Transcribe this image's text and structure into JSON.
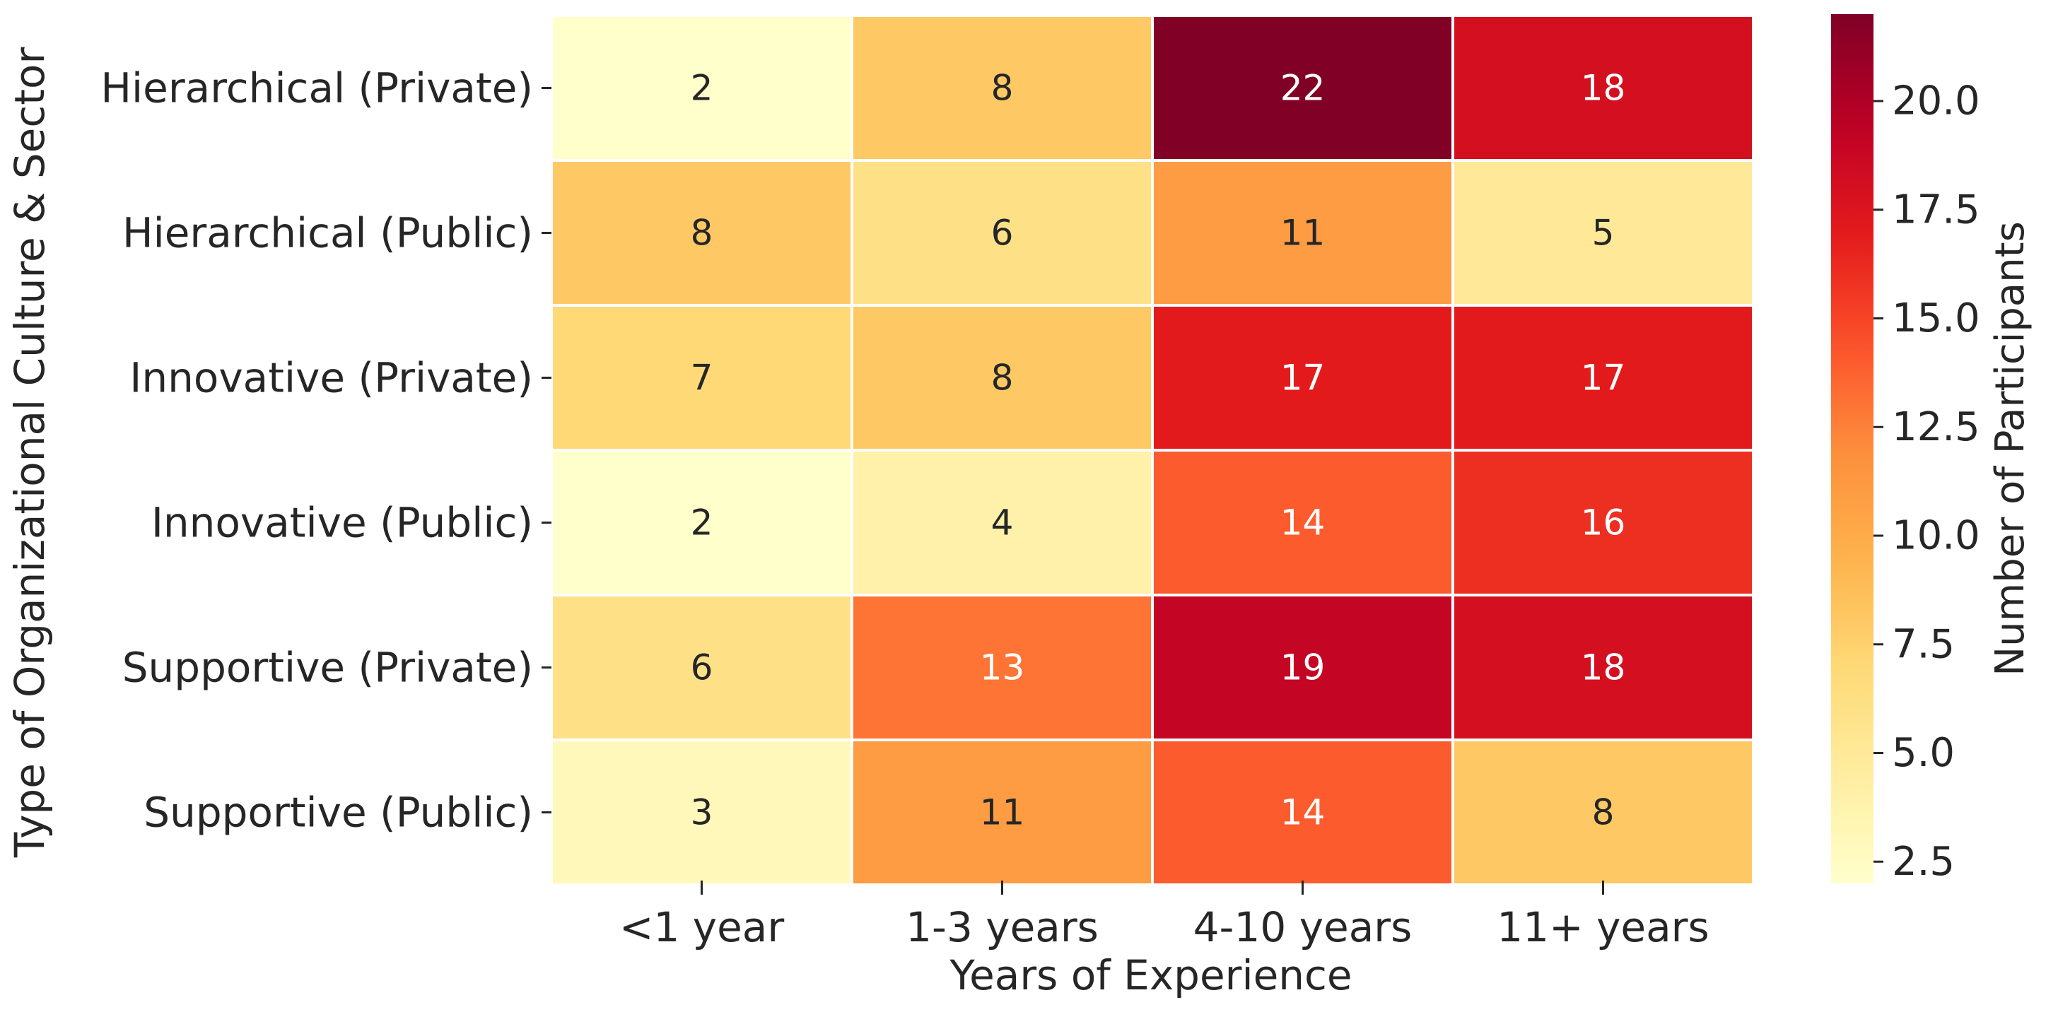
{
  "chart_data": {
    "type": "heatmap",
    "title": "",
    "xlabel": "Years of Experience",
    "ylabel": "Type of Organizational Culture & Sector",
    "x_categories": [
      "<1 year",
      "1-3 years",
      "4-10 years",
      "11+ years"
    ],
    "y_categories": [
      "Hierarchical (Private)",
      "Hierarchical (Public)",
      "Innovative (Private)",
      "Innovative (Public)",
      "Supportive (Private)",
      "Supportive (Public)"
    ],
    "values": [
      [
        2,
        8,
        22,
        18
      ],
      [
        8,
        6,
        11,
        5
      ],
      [
        7,
        8,
        17,
        17
      ],
      [
        2,
        4,
        14,
        16
      ],
      [
        6,
        13,
        19,
        18
      ],
      [
        3,
        11,
        14,
        8
      ]
    ],
    "colormap": "YlOrRd",
    "vmin": 2,
    "vmax": 22,
    "colorbar": {
      "label": "Number of Participants",
      "ticks": [
        2.5,
        5.0,
        7.5,
        10.0,
        12.5,
        15.0,
        17.5,
        20.0
      ],
      "tick_labels": [
        "2.5",
        "5.0",
        "7.5",
        "10.0",
        "12.5",
        "15.0",
        "17.5",
        "20.0"
      ]
    }
  }
}
